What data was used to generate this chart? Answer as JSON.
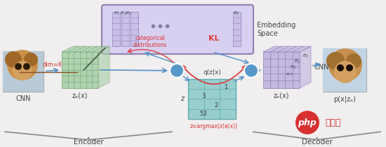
{
  "bg_color": "#f0eeee",
  "encoder_label": "Encoder",
  "decoder_label": "Decoder",
  "embedding_label": "Embedding\nSpace",
  "cnn_label": "CNN",
  "cnn_label2": "CNN",
  "ze_label": "zₑ(x)",
  "zq_label": "zₑ(x)",
  "q_label": "q(z|x)",
  "z_label": "z",
  "px_label": "p(x|zₑ)",
  "dim_label": "dim=K",
  "kl_label": "KL",
  "categorical_label": "categorical\ndistributions",
  "argmax_label": "z=argmax(z(e(x))",
  "e1e2e3_label": "e₁ e₂e₃",
  "eK_label": "eₖ",
  "cube_green_color": "#a8cfa8",
  "cube_green_dark": "#78aa78",
  "cube_purple_color": "#c0b4e0",
  "cube_purple_dark": "#9080b8",
  "embedding_fill": "#d8d0f0",
  "embedding_border": "#9080b0",
  "node_color": "#5898c8",
  "qzx_fill": "#98cece",
  "qzx_border": "#60aaaa",
  "arrow_blue": "#5090c8",
  "arrow_red": "#d84040",
  "text_red": "#d83030",
  "text_dark": "#444444",
  "php_red": "#d83030",
  "dots_color": "#8080a0"
}
